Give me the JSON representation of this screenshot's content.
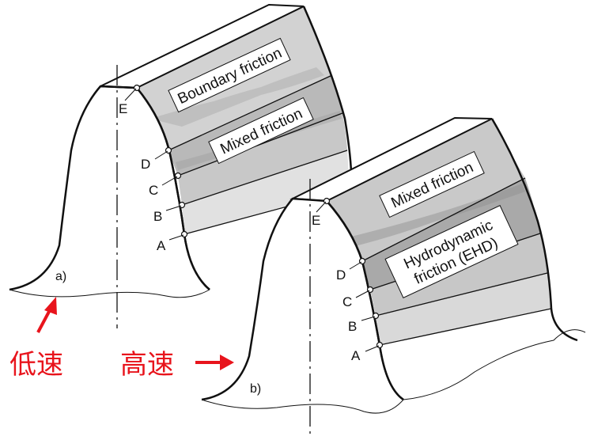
{
  "colors": {
    "outline": "#111111",
    "band_light": "#e3e3e3",
    "band_mid": "#cdcdcd",
    "band_dark": "#b3b3b3",
    "label_box": "#ffffff",
    "arrow_red": "#e8141c"
  },
  "figure_a": {
    "caption": "a)",
    "points": [
      "E",
      "D",
      "C",
      "B",
      "A"
    ],
    "zones": [
      "Boundary friction",
      "Mixed friction"
    ]
  },
  "figure_b": {
    "caption": "b)",
    "points": [
      "E",
      "D",
      "C",
      "B",
      "A"
    ],
    "zones": [
      "Mixed friction",
      "Hydrodynamic",
      "friction (EHD)"
    ]
  },
  "annotations": {
    "low_speed": "低速",
    "high_speed": "高速"
  }
}
